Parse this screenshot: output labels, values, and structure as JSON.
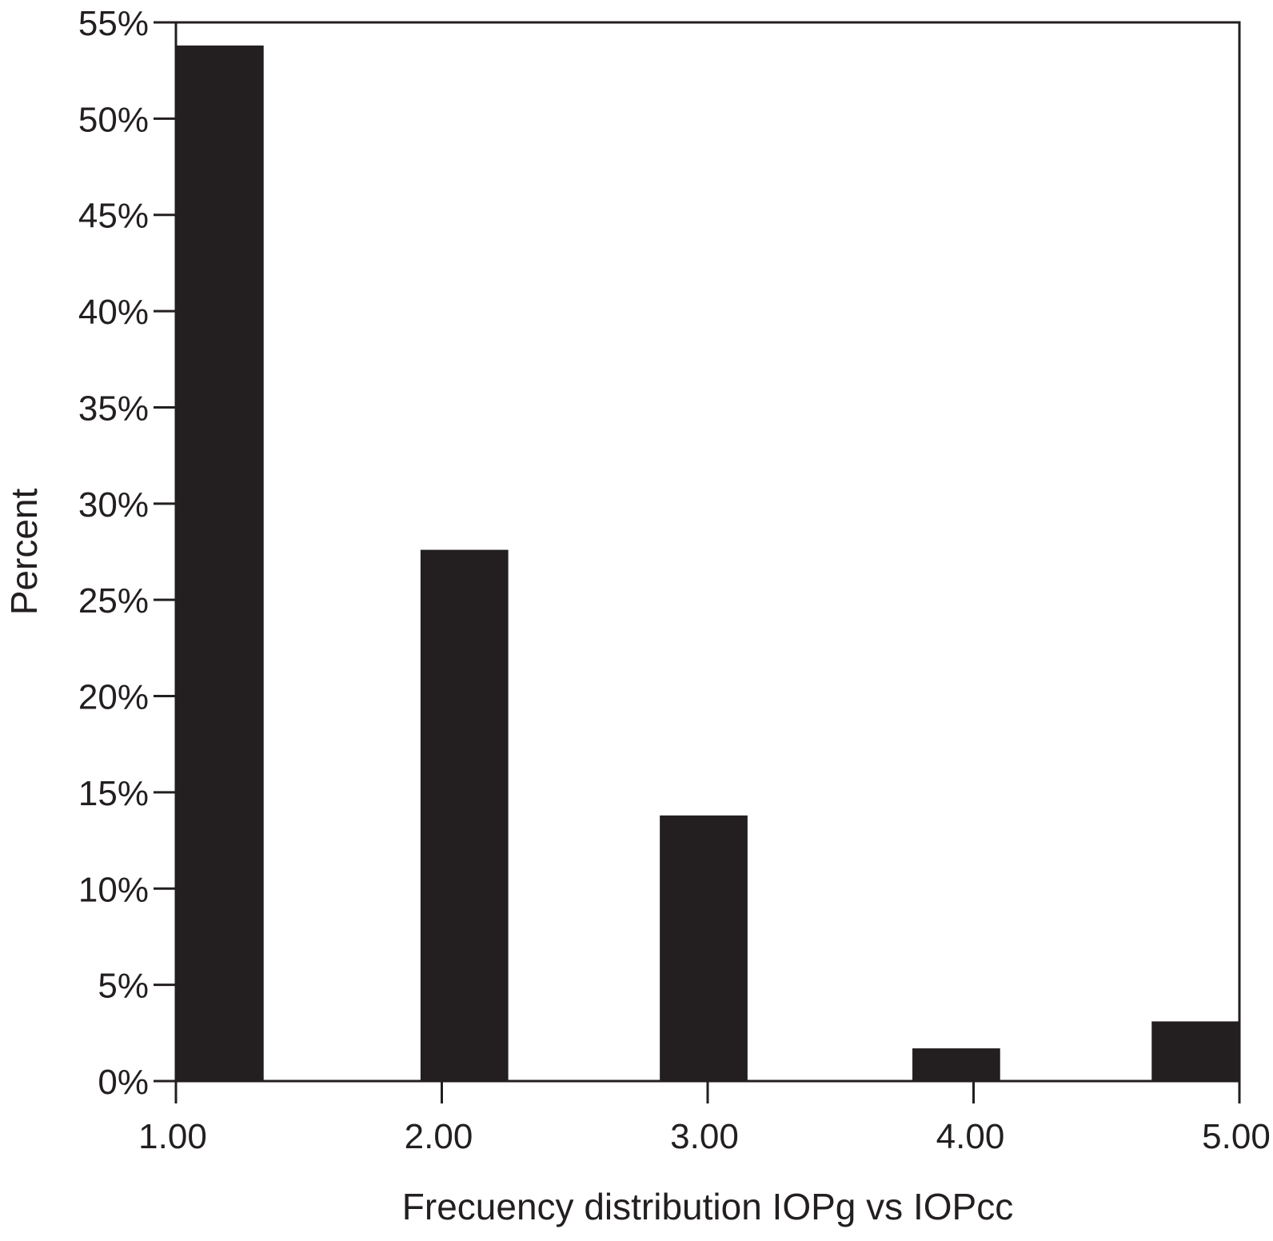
{
  "chart_data": {
    "type": "bar",
    "title": "",
    "xlabel": "Frecuency distribution IOPg vs IOPcc",
    "ylabel": "Percent",
    "x_ticks": [
      "1.00",
      "2.00",
      "3.00",
      "4.00",
      "5.00"
    ],
    "x_tick_values": [
      1,
      2,
      3,
      4,
      5
    ],
    "xlim": [
      1,
      5
    ],
    "y_ticks": [
      "0%",
      "5%",
      "10%",
      "15%",
      "20%",
      "25%",
      "30%",
      "35%",
      "40%",
      "45%",
      "50%",
      "55%"
    ],
    "y_tick_values": [
      0,
      5,
      10,
      15,
      20,
      25,
      30,
      35,
      40,
      45,
      50,
      55
    ],
    "ylim": [
      0,
      55
    ],
    "grid": false,
    "legend": "none",
    "bar_color": "#231f20",
    "bars": [
      {
        "x_start": 1.0,
        "x_end": 1.33,
        "value": 53.8
      },
      {
        "x_start": 1.92,
        "x_end": 2.25,
        "value": 27.6
      },
      {
        "x_start": 2.82,
        "x_end": 3.15,
        "value": 13.8
      },
      {
        "x_start": 3.77,
        "x_end": 4.1,
        "value": 1.7
      },
      {
        "x_start": 4.67,
        "x_end": 5.0,
        "value": 3.1
      }
    ]
  }
}
